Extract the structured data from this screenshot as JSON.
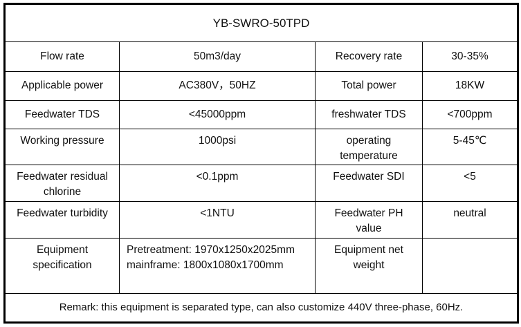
{
  "title": "YB-SWRO-50TPD",
  "rows": [
    {
      "label": "Flow rate",
      "value": "50m3/day",
      "label2": "Recovery rate",
      "value2": "30-35%"
    },
    {
      "label": "Applicable power",
      "value": "AC380V，50HZ",
      "label2": "Total power",
      "value2": "18KW"
    },
    {
      "label": "Feedwater TDS",
      "value": "<45000ppm",
      "label2": "freshwater TDS",
      "value2": "<700ppm"
    },
    {
      "label": "Working pressure",
      "value": "1000psi",
      "label2_line1": "operating",
      "label2_line2": "temperature",
      "value2": "5-45℃"
    },
    {
      "label_line1": "Feedwater residual",
      "label_line2": "chlorine",
      "value": "<0.1ppm",
      "label2": "Feedwater SDI",
      "value2": "<5"
    },
    {
      "label": "Feedwater turbidity",
      "value": "<1NTU",
      "label2_line1": "Feedwater PH",
      "label2_line2": "value",
      "value2": "neutral"
    },
    {
      "label_line1": "Equipment",
      "label_line2": "specification",
      "value_line1": "Pretreatment: 1970x1250x2025mm",
      "value_line2": "mainframe:  1800x1080x1700mm",
      "label2_line1": "Equipment net",
      "label2_line2": "weight",
      "value2": ""
    }
  ],
  "remark": "Remark:  this equipment  is separated type,  can also customize 440V three-phase, 60Hz."
}
